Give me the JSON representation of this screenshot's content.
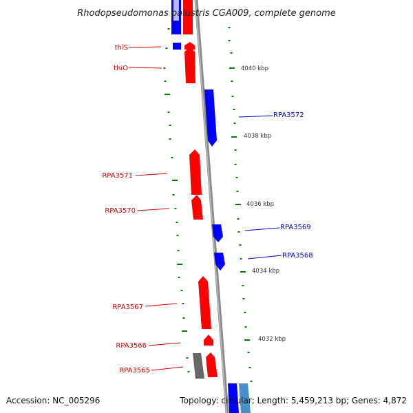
{
  "title": "Rhodopseudomonas palustris CGA009, complete genome",
  "footer": {
    "accession": "Accession: NC_005296",
    "summary": "Topology: circular; Length: 5,459,213 bp; Genes: 4,872"
  },
  "colors": {
    "forward": "#ff0000",
    "reverse": "#0000ff",
    "pseudo": "#666666",
    "light_reverse": "#4a90c8",
    "tick": "#008000",
    "backbone": "#8a8a8a",
    "forward_label": "#cc0000",
    "reverse_label": "#0000cc"
  },
  "gene_labels": [
    {
      "text": "thiS",
      "strand": "forward"
    },
    {
      "text": "thiO",
      "strand": "forward"
    },
    {
      "text": "RPA3572",
      "strand": "reverse"
    },
    {
      "text": "RPA3571",
      "strand": "forward"
    },
    {
      "text": "RPA3570",
      "strand": "forward"
    },
    {
      "text": "RPA3569",
      "strand": "reverse"
    },
    {
      "text": "RPA3568",
      "strand": "reverse"
    },
    {
      "text": "RPA3567",
      "strand": "forward"
    },
    {
      "text": "RPA3566",
      "strand": "forward"
    },
    {
      "text": "RPA3565",
      "strand": "forward"
    }
  ],
  "scale_labels": [
    "4040 kbp",
    "4038 kbp",
    "4036 kbp",
    "4034 kbp",
    "4032 kbp"
  ]
}
